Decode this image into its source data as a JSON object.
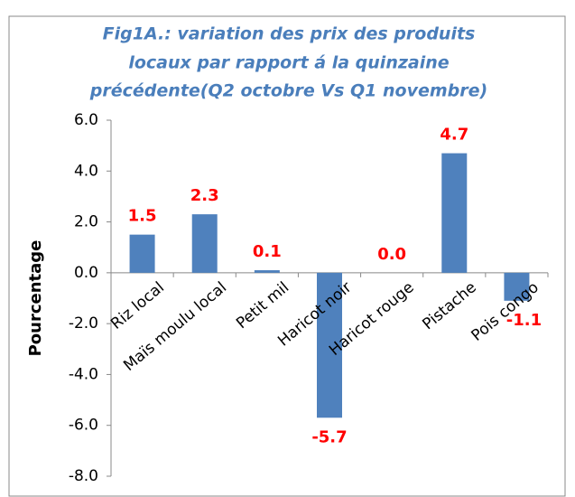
{
  "chart_data": {
    "type": "bar",
    "title": [
      "Fig1A.: variation des prix des produits",
      "locaux par rapport á la quinzaine",
      "précédente(Q2 octobre Vs Q1 novembre)"
    ],
    "y_label": "Pourcentage",
    "categories": [
      "Riz local",
      "Maïs moulu  local",
      "Petit mil",
      "Haricot noir",
      "Haricot rouge",
      "Pistache",
      "Pois congo"
    ],
    "values": [
      1.5,
      2.3,
      0.1,
      -5.7,
      0.0,
      4.7,
      -1.1
    ],
    "value_labels": [
      "1.5",
      "2.3",
      "0.1",
      "-5.7",
      "0.0",
      "4.7",
      "-1.1"
    ],
    "color": "#4f81bd",
    "label_color": "#ff0000",
    "ylim": [
      -8,
      6
    ],
    "yticks": [
      {
        "value": -8,
        "label": "-8.0"
      },
      {
        "value": -6,
        "label": "-6.0"
      },
      {
        "value": -4,
        "label": "-4.0"
      },
      {
        "value": -2,
        "label": "-2.0"
      },
      {
        "value": 0,
        "label": "0.0"
      },
      {
        "value": 2,
        "label": "2.0"
      },
      {
        "value": 4,
        "label": "4.0"
      },
      {
        "value": 6,
        "label": "6.0"
      }
    ],
    "grid": false
  }
}
